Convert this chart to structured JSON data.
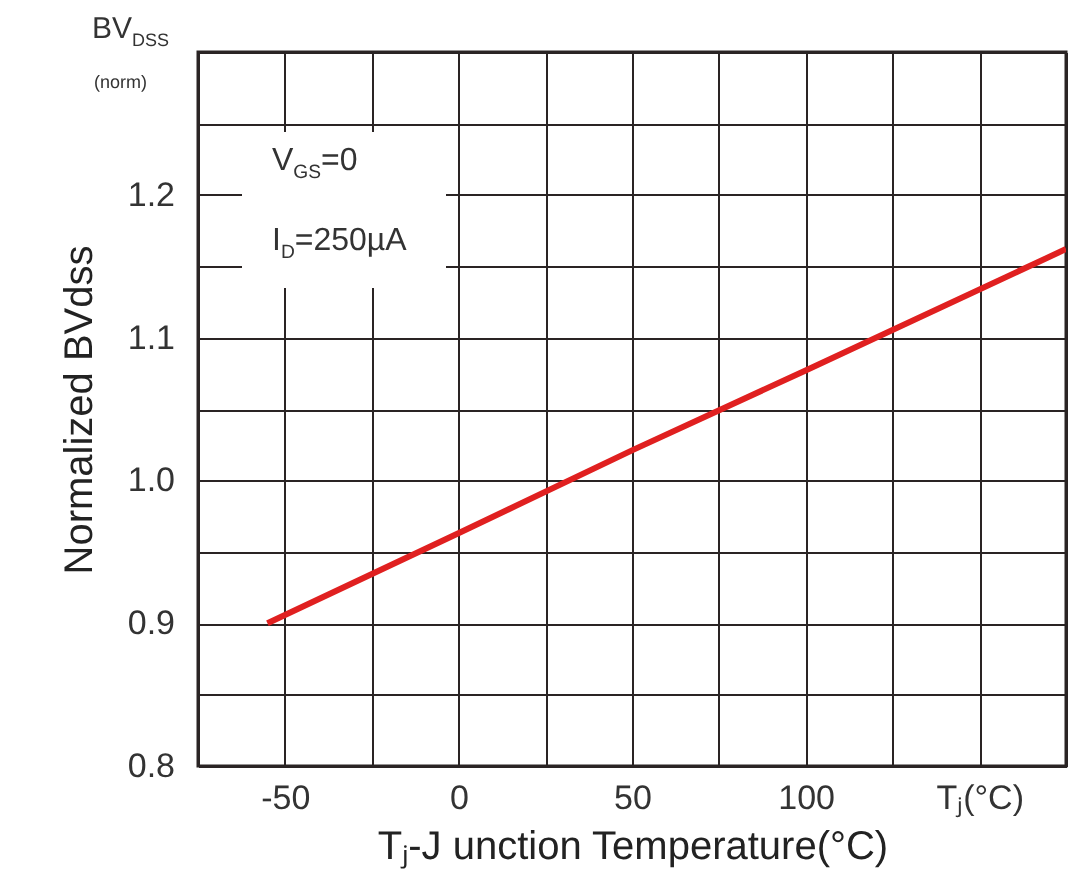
{
  "chart_data": {
    "type": "line",
    "xlabel": "Tⱼ-J unction Temperature(°C)",
    "ylabel": "Normalized BVdss",
    "x": [
      -55,
      0,
      50,
      100,
      175
    ],
    "series": [
      {
        "color": "#e02020",
        "values": [
          0.9,
          0.963,
          1.021,
          1.077,
          1.162
        ]
      }
    ],
    "xlim": [
      -75,
      175
    ],
    "xticks": [
      {
        "value": -75,
        "label": null
      },
      -50,
      {
        "value": -25,
        "label": null
      },
      0,
      {
        "value": 25,
        "label": null
      },
      50,
      {
        "value": 75,
        "label": null
      },
      100,
      {
        "value": 125,
        "label": null
      },
      {
        "value": 150,
        "label": "Tⱼ(°C)"
      },
      {
        "value": 175,
        "label": null
      }
    ],
    "ylim": [
      0.8,
      1.3
    ],
    "yticks": [
      0.8,
      {
        "value": 0.85,
        "label": null
      },
      0.9,
      {
        "value": 0.95,
        "label": null
      },
      {
        "value": 1,
        "label": "1.0"
      },
      {
        "value": 1.05,
        "label": null
      },
      1.1,
      {
        "value": 1.15,
        "label": null
      },
      1.2,
      {
        "value": 1.25,
        "label": null
      },
      {
        "value": 1.3,
        "label": null
      }
    ],
    "grid": true,
    "marker": "none",
    "line_style": "solid",
    "annotations": [
      "BV$_{DSS}$",
      "(norm)",
      "V$_{GS}$=0",
      "I$_{D}$=250µA"
    ]
  }
}
